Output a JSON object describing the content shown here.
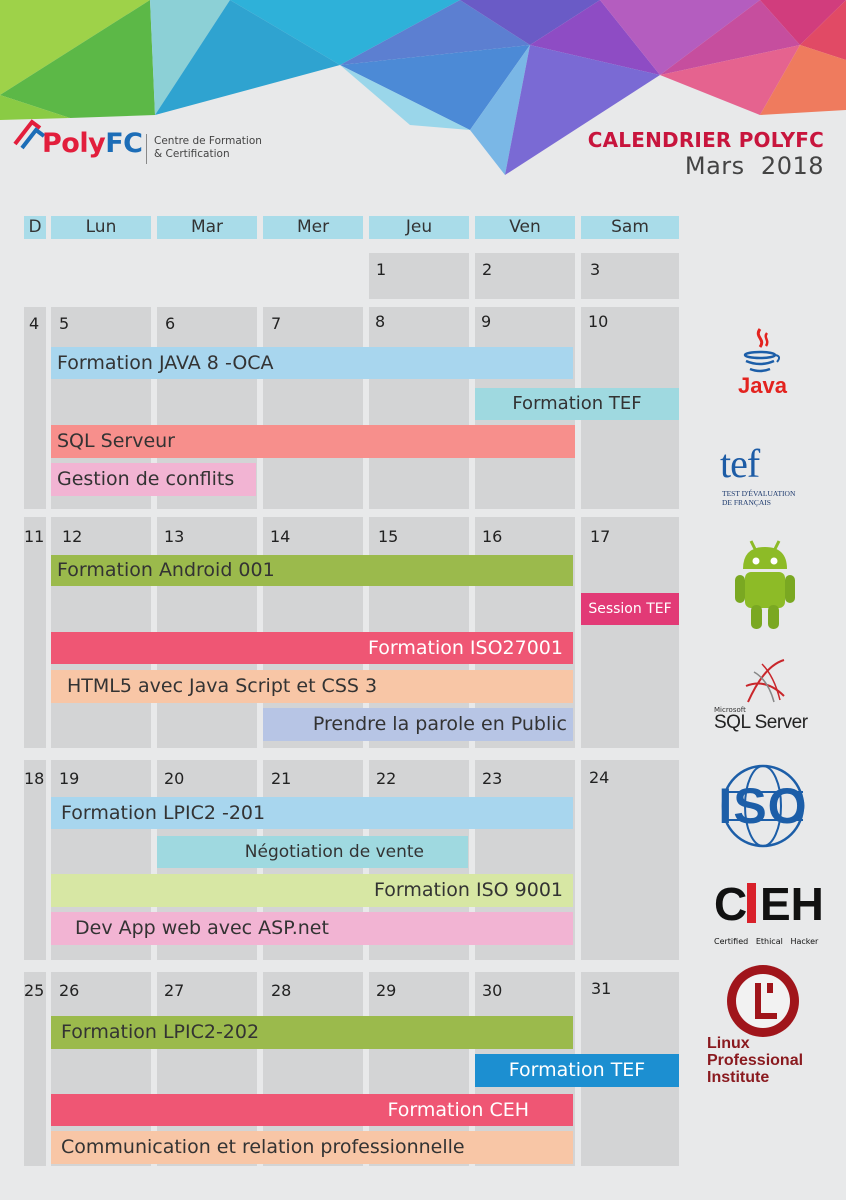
{
  "logo": {
    "brand_part1": "Poly",
    "brand_part2": "FC",
    "subtitle_line1": "Centre de Formation",
    "subtitle_line2": "& Certification"
  },
  "calendar": {
    "title": "CALENDRIER POLYFC",
    "month": "Mars",
    "year": "2018"
  },
  "headers": [
    "D",
    "Lun",
    "Mar",
    "Mer",
    "Jeu",
    "Ven",
    "Sam"
  ],
  "week1": [
    "1",
    "2",
    "3"
  ],
  "week2": [
    "4",
    "5",
    "6",
    "7",
    "8",
    "9",
    "10"
  ],
  "week3": [
    "11",
    "12",
    "13",
    "14",
    "15",
    "16",
    "17"
  ],
  "week4": [
    "18",
    "19",
    "20",
    "21",
    "22",
    "23",
    "24"
  ],
  "week5": [
    "25",
    "26",
    "27",
    "28",
    "29",
    "30",
    "31"
  ],
  "events": {
    "java": "Formation JAVA 8 -OCA",
    "tef1": "Formation TEF",
    "sql": "SQL Serveur",
    "conflits": "Gestion de conflits",
    "android": "Formation Android 001",
    "session_tef": "Session TEF",
    "iso27001": "Formation ISO27001",
    "html5": "HTML5 avec Java Script et CSS 3",
    "parole": "Prendre la parole en Public",
    "lpic201": "Formation LPIC2 -201",
    "negociation": "Négotiation de vente",
    "iso9001": "Formation ISO 9001",
    "aspnet": "Dev App web avec ASP.net",
    "lpic202": "Formation LPIC2-202",
    "tef2": "Formation TEF",
    "ceh": "Formation CEH",
    "communication": "Communication et relation professionnelle"
  },
  "brands": {
    "java": "Java",
    "tef": "tef",
    "tef_sub1": "TEST D'ÉVALUATION",
    "tef_sub2": "DE FRANÇAIS",
    "sql_small": "Microsoft",
    "sql": "SQL Server",
    "iso": "ISO",
    "ceh_c": "C",
    "ceh_eh": "EH",
    "ceh_sub": "Certified   Ethical   Hacker",
    "lpi_line1": "Linux",
    "lpi_line2": "Professional",
    "lpi_line3": "Institute"
  },
  "colors": {
    "header_blue": "#a9dce9",
    "cell_grey": "#d3d4d5",
    "light_blue": "#a8d6ee",
    "teal": "#9fd9e0",
    "salmon": "#f78f8c",
    "pink": "#f2b4d3",
    "green": "#9bba4c",
    "magenta": "#e23a76",
    "crimson": "#ef5674",
    "peach": "#f8c6a6",
    "lavender": "#b7c5e5",
    "light_green": "#d7e7a4",
    "bright_blue": "#1c8fd1"
  }
}
